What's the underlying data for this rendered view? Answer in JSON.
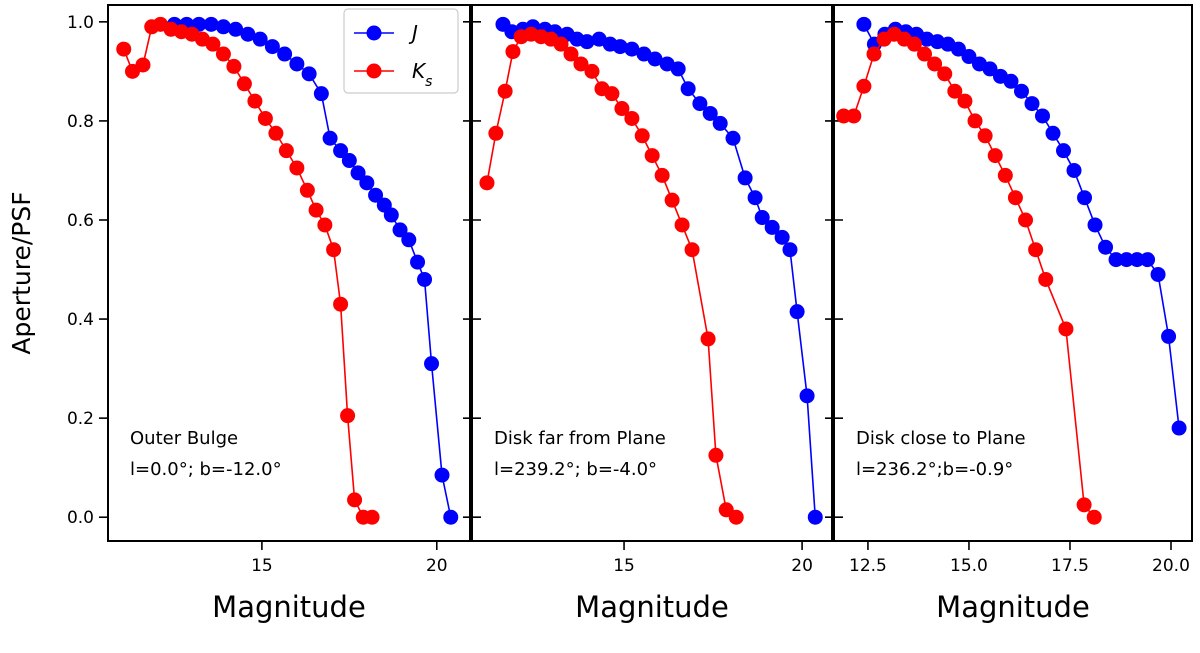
{
  "chart_data": [
    {
      "type": "line",
      "xlabel": "Magnitude",
      "ylabel": "Aperture/PSF",
      "xlim": [
        10.6,
        20.95
      ],
      "ylim": [
        -0.048,
        1.034
      ],
      "xticks": [
        15,
        20
      ],
      "yticks": [
        {
          "value": 0.0,
          "label": "0.0"
        },
        0.2,
        0.4,
        0.6,
        0.8,
        {
          "value": 1.0,
          "label": "1.0"
        }
      ],
      "legend": "upper right",
      "annotations": [
        "Outer Bulge",
        "l=0.0°; b=-12.0°"
      ],
      "series": [
        {
          "name": "J",
          "color": "#0000ff",
          "x": [
            12.5,
            12.85,
            13.2,
            13.55,
            13.9,
            14.25,
            14.6,
            14.95,
            15.3,
            15.65,
            16.0,
            16.35,
            16.7,
            16.95,
            17.25,
            17.5,
            17.75,
            18.0,
            18.25,
            18.5,
            18.7,
            18.95,
            19.2,
            19.45,
            19.65,
            19.85,
            20.15,
            20.4
          ],
          "values": [
            0.995,
            0.995,
            0.995,
            0.995,
            0.99,
            0.985,
            0.975,
            0.965,
            0.95,
            0.935,
            0.915,
            0.895,
            0.855,
            0.765,
            0.74,
            0.72,
            0.695,
            0.675,
            0.65,
            0.63,
            0.61,
            0.58,
            0.56,
            0.515,
            0.48,
            0.31,
            0.085,
            0.0
          ]
        },
        {
          "name": "Ks",
          "color": "#ff0000",
          "x": [
            11.05,
            11.3,
            11.6,
            11.85,
            12.1,
            12.4,
            12.7,
            13.0,
            13.3,
            13.6,
            13.9,
            14.2,
            14.5,
            14.8,
            15.1,
            15.4,
            15.7,
            16.0,
            16.3,
            16.55,
            16.8,
            17.05,
            17.25,
            17.45,
            17.65,
            17.9,
            18.15
          ],
          "values": [
            0.945,
            0.9,
            0.913,
            0.99,
            0.995,
            0.985,
            0.98,
            0.975,
            0.965,
            0.955,
            0.935,
            0.91,
            0.875,
            0.84,
            0.805,
            0.775,
            0.74,
            0.705,
            0.66,
            0.62,
            0.59,
            0.54,
            0.43,
            0.205,
            0.035,
            0.0,
            0.0
          ]
        }
      ]
    },
    {
      "type": "line",
      "xlabel": "Magnitude",
      "xlim": [
        10.73,
        20.84
      ],
      "ylim": [
        -0.048,
        1.034
      ],
      "xticks": [
        15,
        20
      ],
      "annotations": [
        "Disk far from Plane",
        "l=239.2°; b=-4.0°"
      ],
      "series": [
        {
          "color": "#0000ff",
          "x": [
            11.6,
            11.85,
            12.16,
            12.44,
            12.78,
            13.06,
            13.4,
            13.68,
            13.96,
            14.3,
            14.61,
            14.89,
            15.22,
            15.56,
            15.87,
            16.21,
            16.52,
            16.8,
            17.13,
            17.42,
            17.7,
            18.06,
            18.4,
            18.68,
            18.88,
            19.16,
            19.44,
            19.66,
            19.86,
            20.14,
            20.37
          ],
          "values": [
            0.995,
            0.98,
            0.985,
            0.99,
            0.985,
            0.98,
            0.975,
            0.965,
            0.96,
            0.965,
            0.955,
            0.95,
            0.945,
            0.935,
            0.925,
            0.915,
            0.905,
            0.865,
            0.835,
            0.815,
            0.795,
            0.765,
            0.685,
            0.645,
            0.605,
            0.585,
            0.565,
            0.54,
            0.415,
            0.245,
            0.0
          ]
        },
        {
          "color": "#ff0000",
          "x": [
            11.15,
            11.4,
            11.66,
            11.88,
            12.11,
            12.39,
            12.67,
            12.95,
            13.23,
            13.51,
            13.79,
            14.1,
            14.38,
            14.66,
            14.94,
            15.22,
            15.51,
            15.79,
            16.07,
            16.35,
            16.63,
            16.91,
            17.36,
            17.58,
            17.87,
            18.15
          ],
          "values": [
            0.675,
            0.775,
            0.86,
            0.94,
            0.97,
            0.975,
            0.97,
            0.965,
            0.955,
            0.935,
            0.915,
            0.9,
            0.865,
            0.855,
            0.825,
            0.805,
            0.77,
            0.73,
            0.69,
            0.64,
            0.59,
            0.54,
            0.36,
            0.125,
            0.015,
            0.0
          ]
        }
      ]
    },
    {
      "type": "line",
      "xlabel": "Magnitude",
      "xlim": [
        11.66,
        20.52
      ],
      "ylim": [
        -0.048,
        1.034
      ],
      "xticks": [
        12.5,
        {
          "value": 15,
          "label": "15.0"
        },
        17.5,
        {
          "value": 20,
          "label": "20.0"
        }
      ],
      "annotations": [
        "Disk close to Plane",
        "l=236.2°;b=-0.9°"
      ],
      "series": [
        {
          "color": "#0000ff",
          "x": [
            12.4,
            12.66,
            12.92,
            13.18,
            13.44,
            13.7,
            13.96,
            14.22,
            14.48,
            14.74,
            15.0,
            15.26,
            15.52,
            15.78,
            16.04,
            16.3,
            16.56,
            16.82,
            17.08,
            17.34,
            17.6,
            17.86,
            18.12,
            18.38,
            18.64,
            18.9,
            19.16,
            19.42,
            19.68,
            19.94,
            20.2
          ],
          "values": [
            0.995,
            0.955,
            0.975,
            0.985,
            0.98,
            0.975,
            0.965,
            0.96,
            0.955,
            0.945,
            0.93,
            0.915,
            0.905,
            0.89,
            0.88,
            0.86,
            0.835,
            0.81,
            0.775,
            0.74,
            0.7,
            0.645,
            0.59,
            0.545,
            0.52,
            0.52,
            0.52,
            0.52,
            0.49,
            0.365,
            0.18
          ]
        },
        {
          "color": "#ff0000",
          "x": [
            11.9,
            12.15,
            12.4,
            12.65,
            12.9,
            13.15,
            13.4,
            13.65,
            13.9,
            14.15,
            14.4,
            14.65,
            14.9,
            15.15,
            15.4,
            15.65,
            15.9,
            16.15,
            16.4,
            16.65,
            16.9,
            17.4,
            17.85,
            18.1
          ],
          "values": [
            0.81,
            0.81,
            0.87,
            0.935,
            0.965,
            0.975,
            0.965,
            0.955,
            0.935,
            0.915,
            0.895,
            0.86,
            0.84,
            0.8,
            0.77,
            0.73,
            0.69,
            0.645,
            0.6,
            0.54,
            0.48,
            0.38,
            0.025,
            0.0
          ]
        }
      ]
    }
  ]
}
